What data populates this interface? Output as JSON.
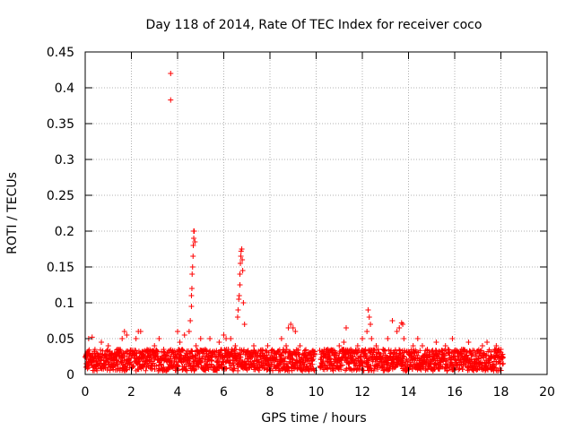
{
  "chart_data": {
    "type": "scatter",
    "title": "Day 118 of 2014, Rate Of TEC Index for receiver coco",
    "xlabel": "GPS time / hours",
    "ylabel": "ROTI / TECUs",
    "xlim": [
      0,
      20
    ],
    "ylim": [
      0,
      0.45
    ],
    "x_ticks": [
      0,
      2,
      4,
      6,
      8,
      10,
      12,
      14,
      16,
      18,
      20
    ],
    "y_ticks": [
      0,
      0.05,
      0.1,
      0.15,
      0.2,
      0.25,
      0.3,
      0.35,
      0.4,
      0.45
    ],
    "x_tick_labels": [
      "0",
      "2",
      "4",
      "6",
      "8",
      "10",
      "12",
      "14",
      "16",
      "18",
      "20"
    ],
    "y_tick_labels": [
      "0",
      "0.05",
      "0.1",
      "0.15",
      "0.2",
      "0.25",
      "0.3",
      "0.35",
      "0.4",
      "0.45"
    ],
    "grid": true,
    "marker": "+",
    "color": "#ff0000",
    "series": [
      {
        "name": "ROTI",
        "points": [
          [
            0.05,
            0.015
          ],
          [
            0.1,
            0.03
          ],
          [
            0.15,
            0.05
          ],
          [
            0.2,
            0.02
          ],
          [
            0.3,
            0.052
          ],
          [
            0.4,
            0.01
          ],
          [
            0.5,
            0.03
          ],
          [
            0.7,
            0.045
          ],
          [
            0.9,
            0.02
          ],
          [
            1.0,
            0.04
          ],
          [
            1.2,
            0.015
          ],
          [
            1.4,
            0.035
          ],
          [
            1.6,
            0.05
          ],
          [
            1.7,
            0.06
          ],
          [
            1.8,
            0.055
          ],
          [
            1.9,
            0.025
          ],
          [
            2.1,
            0.03
          ],
          [
            2.2,
            0.05
          ],
          [
            2.3,
            0.06
          ],
          [
            2.4,
            0.06
          ],
          [
            2.5,
            0.02
          ],
          [
            2.7,
            0.03
          ],
          [
            3.0,
            0.04
          ],
          [
            3.2,
            0.05
          ],
          [
            3.4,
            0.035
          ],
          [
            3.6,
            0.02
          ],
          [
            3.7,
            0.42
          ],
          [
            3.7,
            0.383
          ],
          [
            3.9,
            0.03
          ],
          [
            4.0,
            0.06
          ],
          [
            4.1,
            0.045
          ],
          [
            4.2,
            0.035
          ],
          [
            4.3,
            0.055
          ],
          [
            4.4,
            0.03
          ],
          [
            4.5,
            0.06
          ],
          [
            4.55,
            0.075
          ],
          [
            4.6,
            0.095
          ],
          [
            4.6,
            0.11
          ],
          [
            4.62,
            0.12
          ],
          [
            4.63,
            0.14
          ],
          [
            4.65,
            0.15
          ],
          [
            4.67,
            0.165
          ],
          [
            4.68,
            0.18
          ],
          [
            4.7,
            0.19
          ],
          [
            4.7,
            0.2
          ],
          [
            4.72,
            0.2
          ],
          [
            4.75,
            0.185
          ],
          [
            4.8,
            0.04
          ],
          [
            5.0,
            0.05
          ],
          [
            5.2,
            0.035
          ],
          [
            5.4,
            0.05
          ],
          [
            5.6,
            0.03
          ],
          [
            5.8,
            0.045
          ],
          [
            6.0,
            0.055
          ],
          [
            6.1,
            0.05
          ],
          [
            6.2,
            0.035
          ],
          [
            6.3,
            0.05
          ],
          [
            6.5,
            0.04
          ],
          [
            6.6,
            0.08
          ],
          [
            6.62,
            0.09
          ],
          [
            6.65,
            0.105
          ],
          [
            6.67,
            0.11
          ],
          [
            6.7,
            0.125
          ],
          [
            6.7,
            0.14
          ],
          [
            6.72,
            0.155
          ],
          [
            6.74,
            0.165
          ],
          [
            6.75,
            0.172
          ],
          [
            6.78,
            0.175
          ],
          [
            6.8,
            0.16
          ],
          [
            6.82,
            0.145
          ],
          [
            6.85,
            0.1
          ],
          [
            6.9,
            0.07
          ],
          [
            7.0,
            0.03
          ],
          [
            7.3,
            0.04
          ],
          [
            7.6,
            0.025
          ],
          [
            7.9,
            0.04
          ],
          [
            8.2,
            0.03
          ],
          [
            8.5,
            0.05
          ],
          [
            8.7,
            0.04
          ],
          [
            8.8,
            0.065
          ],
          [
            8.9,
            0.07
          ],
          [
            9.0,
            0.065
          ],
          [
            9.1,
            0.06
          ],
          [
            9.3,
            0.04
          ],
          [
            9.5,
            0.03
          ],
          [
            9.8,
            0.02
          ],
          [
            10.3,
            0.03
          ],
          [
            10.5,
            0.035
          ],
          [
            10.7,
            0.03
          ],
          [
            11.0,
            0.04
          ],
          [
            11.2,
            0.045
          ],
          [
            11.3,
            0.065
          ],
          [
            11.5,
            0.035
          ],
          [
            11.8,
            0.04
          ],
          [
            12.0,
            0.05
          ],
          [
            12.2,
            0.06
          ],
          [
            12.25,
            0.09
          ],
          [
            12.3,
            0.08
          ],
          [
            12.35,
            0.07
          ],
          [
            12.4,
            0.05
          ],
          [
            12.6,
            0.04
          ],
          [
            12.9,
            0.035
          ],
          [
            13.1,
            0.05
          ],
          [
            13.3,
            0.075
          ],
          [
            13.5,
            0.06
          ],
          [
            13.6,
            0.065
          ],
          [
            13.7,
            0.072
          ],
          [
            13.75,
            0.07
          ],
          [
            13.8,
            0.05
          ],
          [
            14.0,
            0.03
          ],
          [
            14.2,
            0.04
          ],
          [
            14.4,
            0.05
          ],
          [
            14.6,
            0.04
          ],
          [
            14.8,
            0.02
          ],
          [
            15.2,
            0.045
          ],
          [
            15.6,
            0.04
          ],
          [
            15.9,
            0.05
          ],
          [
            16.3,
            0.035
          ],
          [
            16.6,
            0.045
          ],
          [
            16.9,
            0.03
          ],
          [
            17.2,
            0.04
          ],
          [
            17.4,
            0.045
          ],
          [
            17.6,
            0.025
          ],
          [
            17.8,
            0.04
          ],
          [
            18.0,
            0.035
          ]
        ]
      }
    ],
    "noise_band": {
      "description": "dense cloud of ROTI points",
      "segments": [
        [
          0.0,
          9.95
        ],
        [
          10.15,
          18.1
        ]
      ],
      "y_min": 0.005,
      "y_max": 0.035,
      "step_hours": 0.018
    }
  }
}
